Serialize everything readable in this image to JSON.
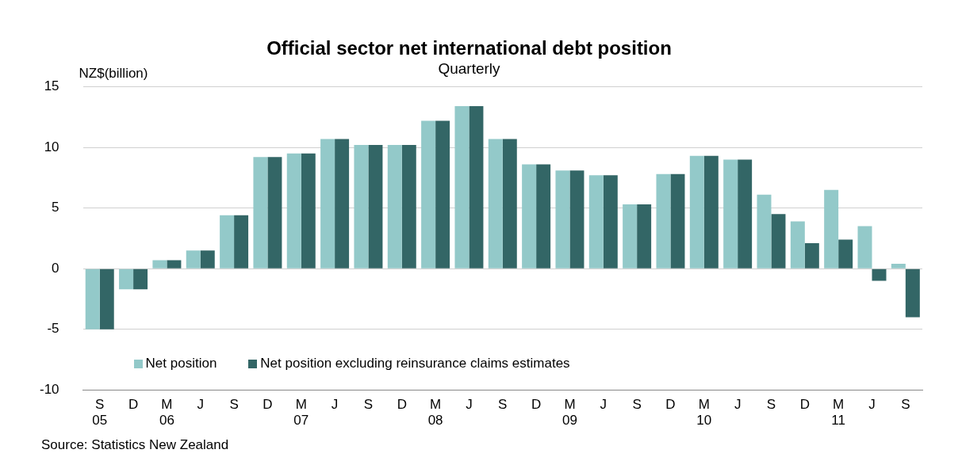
{
  "chart_data": {
    "type": "bar",
    "title": "Official sector net international debt position",
    "subtitle": "Quarterly",
    "ylabel": "NZ$(billion)",
    "categories": [
      "S\n05",
      "D",
      "M\n06",
      "J",
      "S",
      "D",
      "M\n07",
      "J",
      "S",
      "D",
      "M\n08",
      "J",
      "S",
      "D",
      "M\n09",
      "J",
      "S",
      "D",
      "M\n10",
      "J",
      "S",
      "D",
      "M\n11",
      "J",
      "S"
    ],
    "series": [
      {
        "name": "Net position",
        "color": "#93c9c9",
        "values": [
          -5.0,
          -1.7,
          0.7,
          1.5,
          4.4,
          9.2,
          9.5,
          10.7,
          10.2,
          10.2,
          12.2,
          13.4,
          10.7,
          8.6,
          8.1,
          7.7,
          5.3,
          7.8,
          9.3,
          9.0,
          6.1,
          3.9,
          6.5,
          3.5,
          0.4
        ]
      },
      {
        "name": "Net position excluding reinsurance claims estimates",
        "color": "#336666",
        "values": [
          -5.0,
          -1.7,
          0.7,
          1.5,
          4.4,
          9.2,
          9.5,
          10.7,
          10.2,
          10.2,
          12.2,
          13.4,
          10.7,
          8.6,
          8.1,
          7.7,
          5.3,
          7.8,
          9.3,
          9.0,
          4.5,
          2.1,
          2.4,
          -1.0,
          -4.0
        ]
      }
    ],
    "ylim": [
      -10,
      15
    ],
    "yticks": [
      -10,
      -5,
      0,
      5,
      10,
      15
    ],
    "grid": "y",
    "legend": "bottom left",
    "annotations": [
      "Source: Statistics New Zealand"
    ]
  }
}
